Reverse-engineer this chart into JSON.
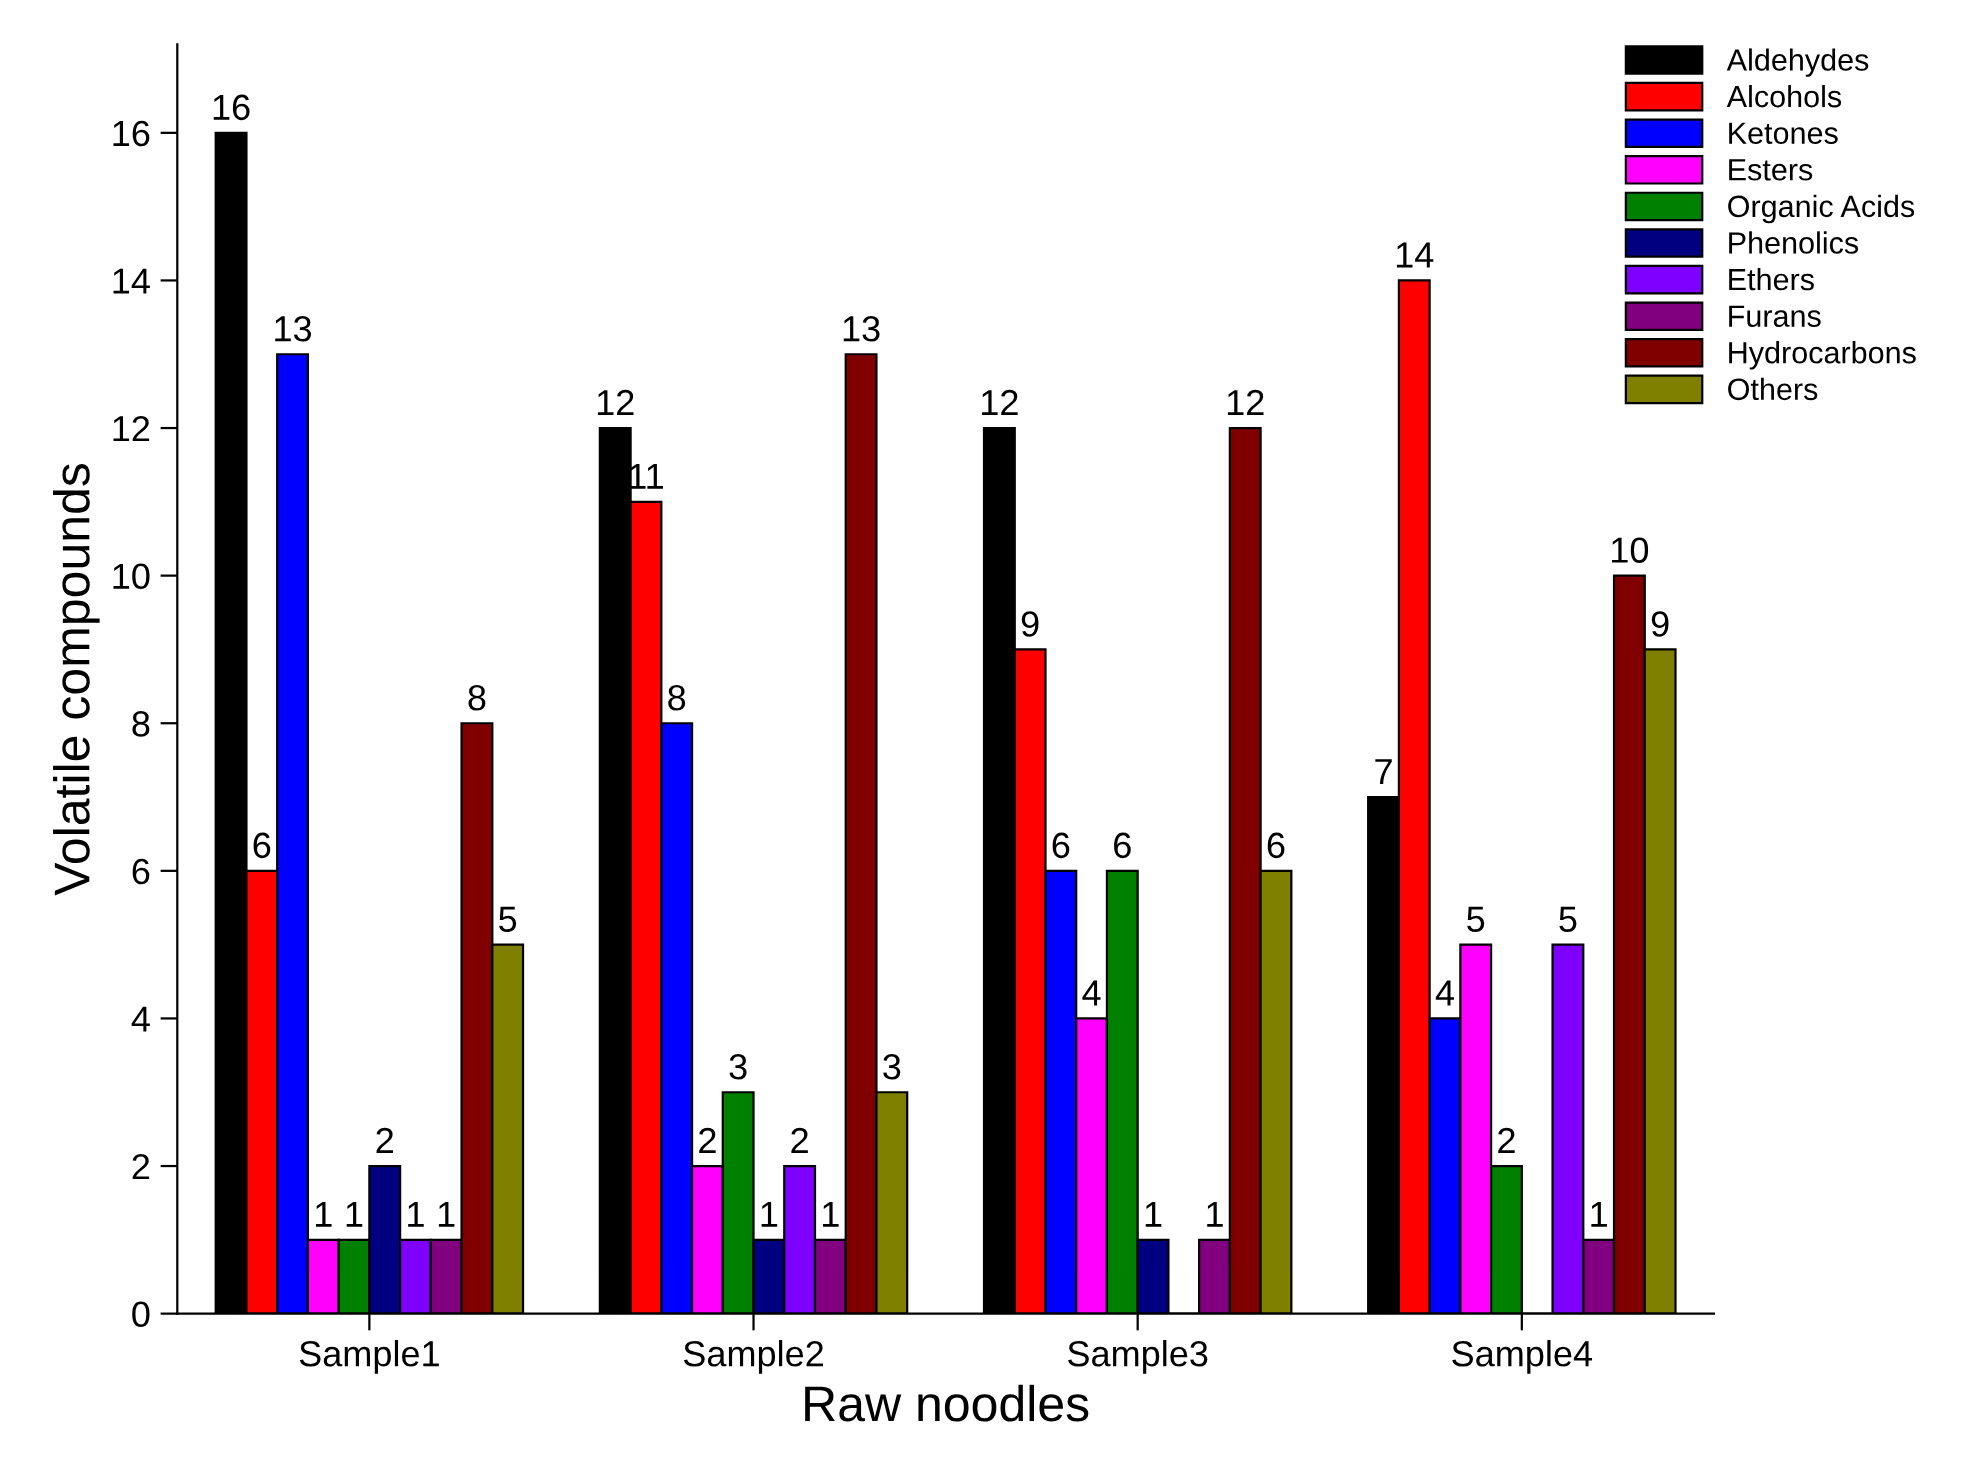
{
  "chart_data": {
    "type": "bar",
    "xlabel": "Raw noodles",
    "ylabel": "Volatile compounds",
    "categories": [
      "Sample1",
      "Sample2",
      "Sample3",
      "Sample4"
    ],
    "series": [
      {
        "name": "Aldehydes",
        "color": "#000000",
        "values": [
          16,
          12,
          12,
          7
        ],
        "value_labels": [
          "16",
          "12",
          "12",
          "7"
        ]
      },
      {
        "name": "Alcohols",
        "color": "#ff0000",
        "values": [
          6,
          11,
          9,
          14
        ],
        "value_labels": [
          "6",
          "11",
          "9",
          "14"
        ]
      },
      {
        "name": "Ketones",
        "color": "#0000ff",
        "values": [
          13,
          8,
          6,
          4
        ],
        "value_labels": [
          "13",
          "8",
          "6",
          "4"
        ]
      },
      {
        "name": "Esters",
        "color": "#ff00ff",
        "values": [
          1,
          2,
          4,
          5
        ],
        "value_labels": [
          "1",
          "2",
          "4",
          "5"
        ]
      },
      {
        "name": "Organic Acids",
        "color": "#008000",
        "values": [
          1,
          3,
          6,
          2
        ],
        "value_labels": [
          "1",
          "3",
          "6",
          "2"
        ]
      },
      {
        "name": "Phenolics",
        "color": "#000080",
        "values": [
          2,
          1,
          1,
          0
        ],
        "value_labels": [
          "2",
          "1",
          "1",
          null
        ]
      },
      {
        "name": "Ethers",
        "color": "#8000ff",
        "values": [
          1,
          2,
          0,
          5
        ],
        "value_labels": [
          "1",
          "2",
          null,
          "5"
        ]
      },
      {
        "name": "Furans",
        "color": "#800080",
        "values": [
          1,
          1,
          1,
          1
        ],
        "value_labels": [
          "1",
          "1",
          "1",
          "1"
        ]
      },
      {
        "name": "Hydrocarbons",
        "color": "#800000",
        "values": [
          8,
          13,
          12,
          10
        ],
        "value_labels": [
          "8",
          "13",
          "12",
          "10"
        ]
      },
      {
        "name": "Others",
        "color": "#808000",
        "values": [
          5,
          3,
          6,
          9
        ],
        "value_labels": [
          "5",
          "3",
          "6",
          "9"
        ]
      }
    ],
    "ylim": [
      0,
      17.2
    ],
    "yticks": [
      0,
      2,
      4,
      6,
      8,
      10,
      12,
      14,
      16
    ],
    "grid": false,
    "legend": "top right"
  }
}
